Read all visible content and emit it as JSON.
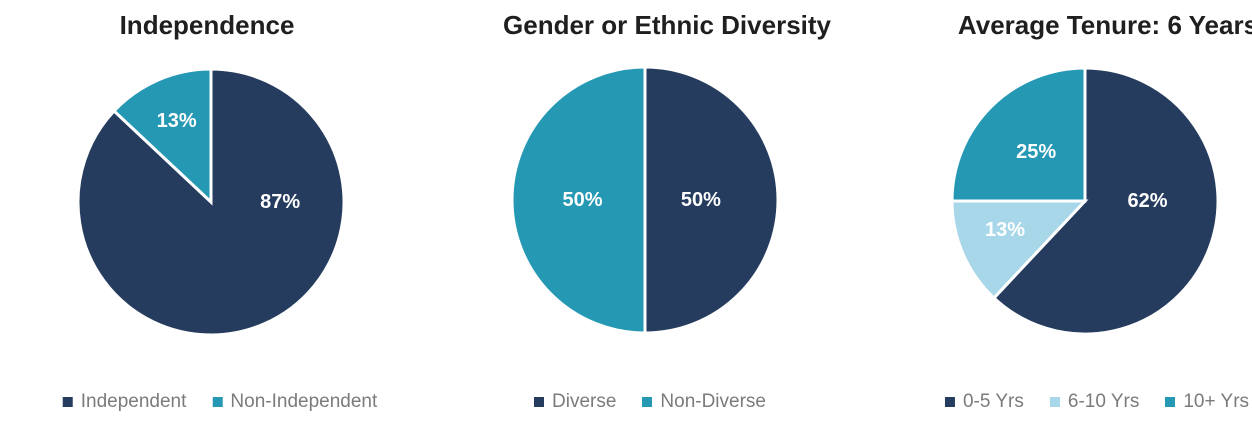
{
  "colors": {
    "navy": "#253C5E",
    "teal": "#2598B4",
    "light_blue": "#A7D7E8",
    "title_text": "#1F1F1F",
    "legend_text": "#7B7B7B",
    "slice_divider": "#FFFFFF"
  },
  "chart_data": [
    {
      "type": "pie",
      "title": "Independence",
      "legend_position": "bottom",
      "start_angle": 0,
      "direction": "clockwise",
      "slices": [
        {
          "label": "Independent",
          "value": 87,
          "pct_label": "87%",
          "color": "#253C5E",
          "label_angle": 90,
          "label_r": 0.52
        },
        {
          "label": "Non-Independent",
          "value": 13,
          "pct_label": "13%",
          "color": "#2598B4",
          "label_angle": 337,
          "label_r": 0.66
        }
      ]
    },
    {
      "type": "pie",
      "title": "Gender or Ethnic Diversity",
      "legend_position": "bottom",
      "start_angle": 0,
      "direction": "clockwise",
      "slices": [
        {
          "label": "Diverse",
          "value": 50,
          "pct_label": "50%",
          "color": "#253C5E",
          "label_angle": 90,
          "label_r": 0.42
        },
        {
          "label": "Non-Diverse",
          "value": 50,
          "pct_label": "50%",
          "color": "#2598B4",
          "label_angle": 270,
          "label_r": 0.47
        }
      ]
    },
    {
      "type": "pie",
      "title": "Average Tenure: 6 Years",
      "legend_position": "bottom",
      "start_angle": 0,
      "direction": "clockwise",
      "slices": [
        {
          "label": "0-5 Yrs",
          "value": 62,
          "pct_label": "62%",
          "color": "#253C5E",
          "label_angle": 90,
          "label_r": 0.47
        },
        {
          "label": "6-10 Yrs",
          "value": 13,
          "pct_label": "13%",
          "color": "#A7D7E8",
          "label_angle": 250,
          "label_r": 0.64
        },
        {
          "label": "10+ Yrs",
          "value": 25,
          "pct_label": "25%",
          "color": "#2598B4",
          "label_angle": 315,
          "label_r": 0.52
        }
      ]
    }
  ]
}
